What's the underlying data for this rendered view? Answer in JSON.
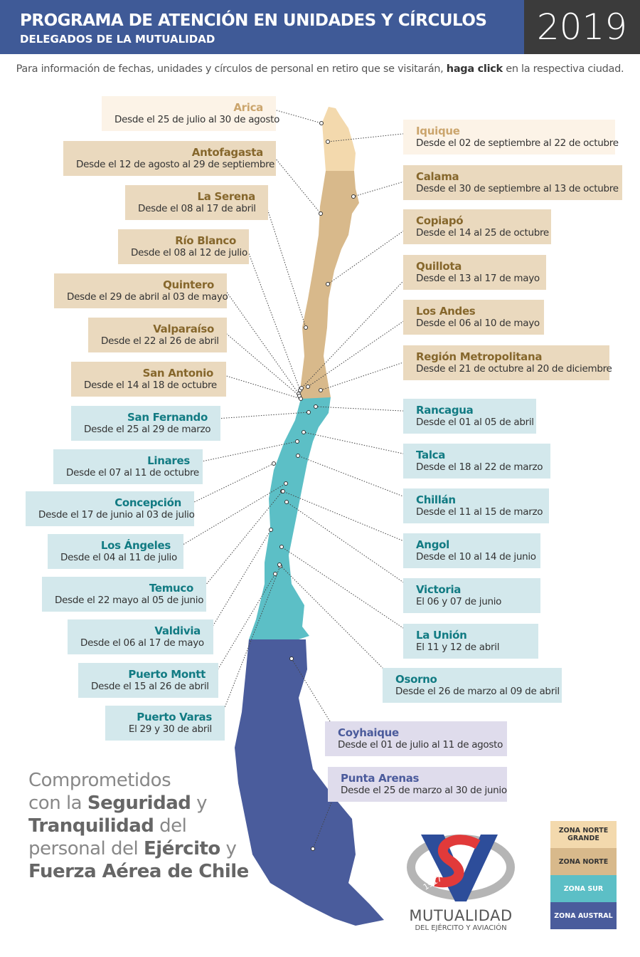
{
  "header": {
    "title": "PROGRAMA DE ATENCIÓN EN UNIDADES Y CÍRCULOS",
    "subtitle": "DELEGADOS DE LA MUTUALIDAD",
    "year": "2019"
  },
  "intro": {
    "before": "Para información de fechas, unidades y círculos de personal en retiro que se visitarán, ",
    "bold": "haga click",
    "after": " en la respectiva ciudad."
  },
  "zones": [
    {
      "label": "ZONA NORTE GRANDE",
      "color": "#f3d9ad"
    },
    {
      "label": "ZONA NORTE",
      "color": "#d8b98b"
    },
    {
      "label": "ZONA SUR",
      "color": "#5cbfc6"
    },
    {
      "label": "ZONA AUSTRAL",
      "color": "#4a5c9c"
    }
  ],
  "cities": [
    {
      "name": "Arica",
      "dates": "Desde el 25 de julio al 30 de agosto",
      "zone": 0
    },
    {
      "name": "Antofagasta",
      "dates": "Desde el 12 de agosto al 29 de septiembre",
      "zone": 1
    },
    {
      "name": "La Serena",
      "dates": "Desde el 08 al 17 de abril",
      "zone": 1
    },
    {
      "name": "Río Blanco",
      "dates": "Desde el 08 al 12 de julio",
      "zone": 1
    },
    {
      "name": "Quintero",
      "dates": "Desde el 29 de abril al 03 de mayo",
      "zone": 1
    },
    {
      "name": "Valparaíso",
      "dates": "Desde el 22 al 26 de abril",
      "zone": 1
    },
    {
      "name": "San Antonio",
      "dates": "Desde el 14 al 18 de octubre",
      "zone": 1
    },
    {
      "name": "San Fernando",
      "dates": "Desde el 25 al 29 de marzo",
      "zone": 2
    },
    {
      "name": "Linares",
      "dates": "Desde el 07 al 11 de octubre",
      "zone": 2
    },
    {
      "name": "Concepción",
      "dates": "Desde el 17 de junio al 03 de julio",
      "zone": 2
    },
    {
      "name": "Los Ángeles",
      "dates": "Desde el 04 al 11 de julio",
      "zone": 2
    },
    {
      "name": "Temuco",
      "dates": "Desde el 22 mayo al 05 de junio",
      "zone": 2
    },
    {
      "name": "Valdivia",
      "dates": "Desde el 06 al 17 de mayo",
      "zone": 2
    },
    {
      "name": "Puerto Montt",
      "dates": "Desde el 15 al 26 de abril",
      "zone": 2
    },
    {
      "name": "Puerto Varas",
      "dates": "El 29 y 30 de abril",
      "zone": 2
    },
    {
      "name": "Iquique",
      "dates": "Desde el 02 de septiembre al 22 de octubre",
      "zone": 0
    },
    {
      "name": "Calama",
      "dates": "Desde el 30 de septiembre al 13 de octubre",
      "zone": 1
    },
    {
      "name": "Copiapó",
      "dates": "Desde el 14 al 25 de octubre",
      "zone": 1
    },
    {
      "name": "Quillota",
      "dates": "Desde el 13 al 17 de mayo",
      "zone": 1
    },
    {
      "name": "Los Andes",
      "dates": "Desde el 06 al 10 de mayo",
      "zone": 1
    },
    {
      "name": "Región Metropolitana",
      "dates": "Desde el 21 de octubre al 20 de diciembre",
      "zone": 1
    },
    {
      "name": "Rancagua",
      "dates": "Desde el 01 al 05 de abril",
      "zone": 2
    },
    {
      "name": "Talca",
      "dates": "Desde el 18 al 22 de marzo",
      "zone": 2
    },
    {
      "name": "Chillán",
      "dates": "Desde el 11 al 15 de marzo",
      "zone": 2
    },
    {
      "name": "Angol",
      "dates": "Desde el 10 al 14 de junio",
      "zone": 2
    },
    {
      "name": "Victoria",
      "dates": "El 06 y 07 de junio",
      "zone": 2
    },
    {
      "name": "La Unión",
      "dates": "El 11 y 12 de abril",
      "zone": 2
    },
    {
      "name": "Osorno",
      "dates": "Desde el 26 de marzo al 09 de abril",
      "zone": 2
    },
    {
      "name": "Coyhaique",
      "dates": "Desde el 01 de julio al 11 de agosto",
      "zone": 3
    },
    {
      "name": "Punta Arenas",
      "dates": "Desde el 25 de marzo al 30 de junio",
      "zone": 3
    }
  ],
  "tagline": [
    [
      {
        "text": "Comprometidos",
        "bold": false
      }
    ],
    [
      {
        "text": "con la ",
        "bold": false
      },
      {
        "text": "Seguridad",
        "bold": true
      },
      {
        "text": " y",
        "bold": false
      }
    ],
    [
      {
        "text": "Tranquilidad",
        "bold": true
      },
      {
        "text": " del",
        "bold": false
      }
    ],
    [
      {
        "text": "personal del ",
        "bold": false
      },
      {
        "text": "Ejército",
        "bold": true
      },
      {
        "text": " y",
        "bold": false
      }
    ],
    [
      {
        "text": "Fuerza Aérea de Chile",
        "bold": true
      }
    ]
  ],
  "logo": {
    "year": "1917",
    "name": "MUTUALIDAD",
    "subtitle": "DEL EJÉRCITO Y AVIACIÓN"
  }
}
